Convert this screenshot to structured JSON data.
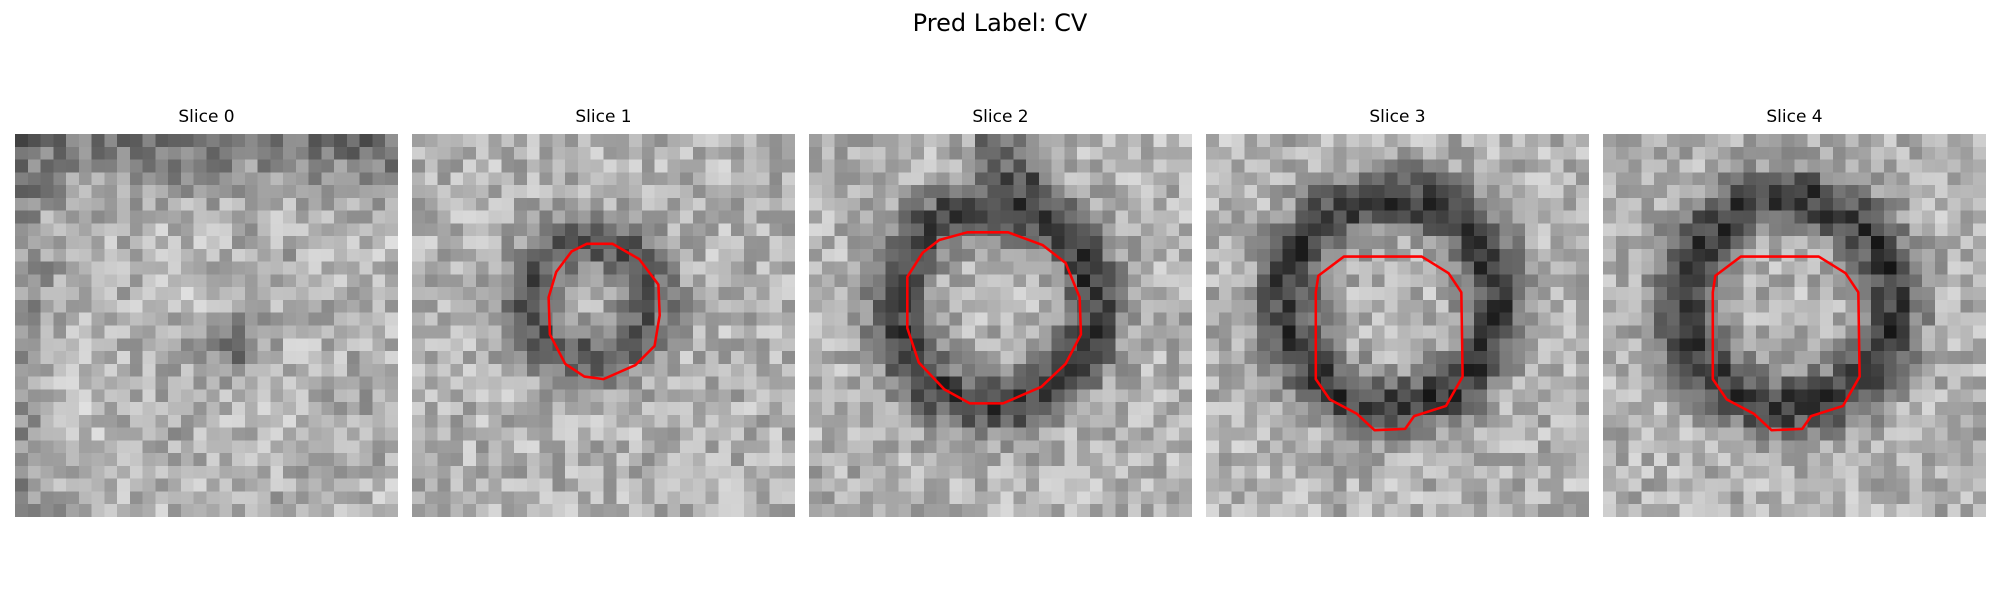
{
  "figure": {
    "title": "Pred Label: CV"
  },
  "panels": [
    {
      "title": "Slice 0",
      "contour": false
    },
    {
      "title": "Slice 1",
      "contour": true
    },
    {
      "title": "Slice 2",
      "contour": true
    },
    {
      "title": "Slice 3",
      "contour": true
    },
    {
      "title": "Slice 4",
      "contour": true
    }
  ],
  "colors": {
    "contour": "#ff0000"
  }
}
